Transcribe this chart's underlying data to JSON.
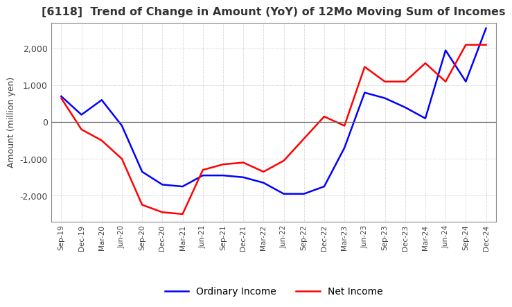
{
  "title": "[6118]  Trend of Change in Amount (YoY) of 12Mo Moving Sum of Incomes",
  "ylabel": "Amount (million yen)",
  "ylim": [
    -2700,
    2700
  ],
  "yticks": [
    -2000,
    -1000,
    0,
    1000,
    2000
  ],
  "x_labels": [
    "Sep-19",
    "Dec-19",
    "Mar-20",
    "Jun-20",
    "Sep-20",
    "Dec-20",
    "Mar-21",
    "Jun-21",
    "Sep-21",
    "Dec-21",
    "Mar-22",
    "Jun-22",
    "Sep-22",
    "Dec-22",
    "Mar-23",
    "Jun-23",
    "Sep-23",
    "Dec-23",
    "Mar-24",
    "Jun-24",
    "Sep-24",
    "Dec-24"
  ],
  "ordinary_income": [
    700,
    200,
    600,
    -100,
    -1350,
    -1700,
    -1750,
    -1450,
    -1450,
    -1500,
    -1650,
    -1950,
    -1950,
    -1750,
    -700,
    800,
    650,
    400,
    100,
    1950,
    1100,
    2550
  ],
  "net_income": [
    650,
    -200,
    -500,
    -1000,
    -2250,
    -2450,
    -2500,
    -1300,
    -1150,
    -1100,
    -1350,
    -1050,
    -450,
    150,
    -100,
    1500,
    1100,
    1100,
    1600,
    1100,
    2100,
    2100
  ],
  "ordinary_color": "#0000ff",
  "net_color": "#ff0000",
  "background_color": "#ffffff",
  "grid_color": "#aaaaaa",
  "title_color": "#333333",
  "legend_labels": [
    "Ordinary Income",
    "Net Income"
  ]
}
